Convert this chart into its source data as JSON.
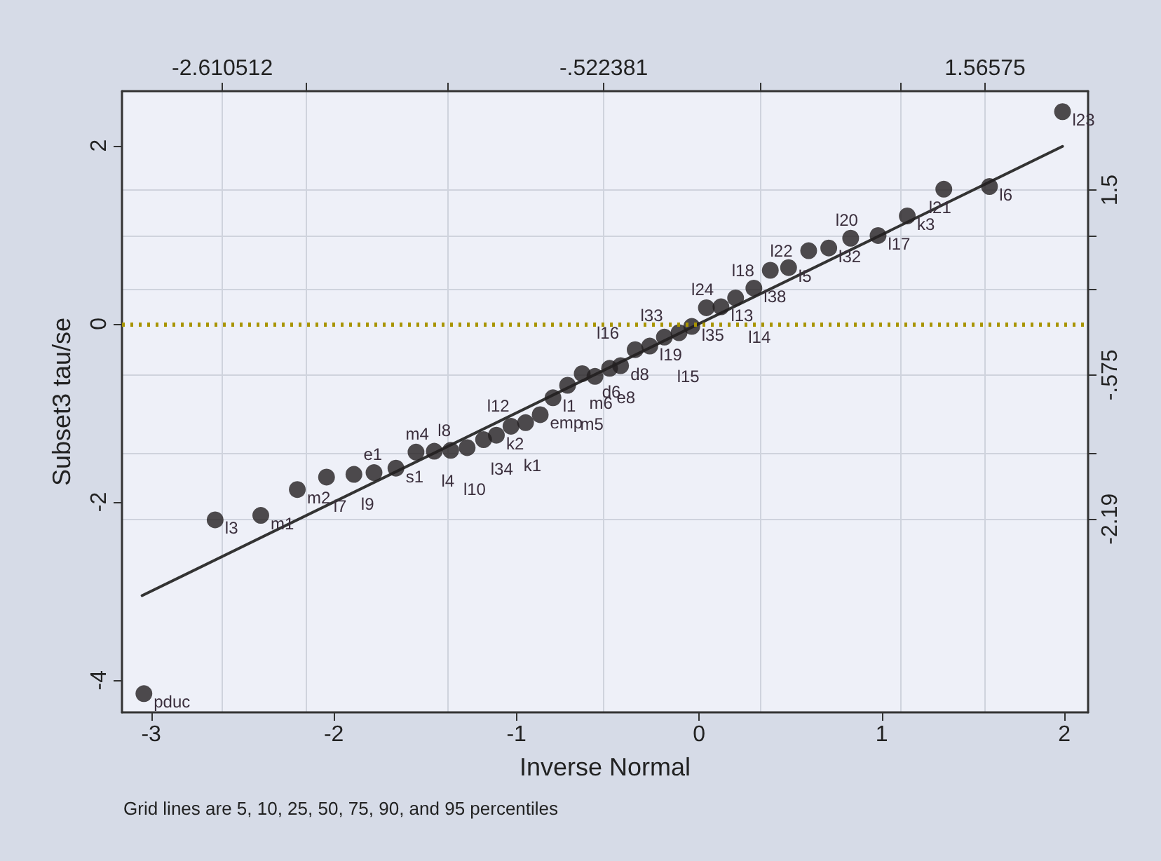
{
  "chart_data": {
    "type": "scatter",
    "xlabel": "Inverse Normal",
    "ylabel": "Subset3 tau/se",
    "xlim": [
      -3.16,
      2.13
    ],
    "ylim": [
      -4.36,
      2.61
    ],
    "xticks": [
      -3,
      -2,
      -1,
      0,
      1,
      2
    ],
    "yticks": [
      -4,
      -2,
      0,
      2
    ],
    "x2lim": [
      -3.16,
      2.13
    ],
    "x2ticks": [
      {
        "value": -2.610512,
        "label": "-2.610512"
      },
      {
        "value": -2.149,
        "label": null
      },
      {
        "value": -1.379,
        "label": null
      },
      {
        "value": -0.522381,
        "label": "-.522381"
      },
      {
        "value": 0.334,
        "label": null
      },
      {
        "value": 1.104,
        "label": null
      },
      {
        "value": 1.56575,
        "label": "1.56575"
      }
    ],
    "y2lim": [
      -4.36,
      2.61
    ],
    "y2ticks": [
      {
        "value": 1.5,
        "label": "1.5"
      },
      {
        "value": 0.98,
        "label": null
      },
      {
        "value": 0.38,
        "label": null
      },
      {
        "value": -0.575,
        "label": "-.575"
      },
      {
        "value": -1.45,
        "label": null
      },
      {
        "value": -2.19,
        "label": "-2.19"
      }
    ],
    "grid": true,
    "marker": "circle",
    "series": [
      {
        "color": "#231f20",
        "x": [
          -3.04,
          -2.65,
          -2.4,
          -2.2,
          -2.04,
          -1.89,
          -1.78,
          -1.66,
          -1.55,
          -1.45,
          -1.36,
          -1.27,
          -1.18,
          -1.11,
          -1.03,
          -0.95,
          -0.87,
          -0.8,
          -0.72,
          -0.64,
          -0.57,
          -0.49,
          -0.43,
          -0.35,
          -0.27,
          -0.19,
          -0.11,
          -0.04,
          0.04,
          0.12,
          0.2,
          0.3,
          0.39,
          0.49,
          0.6,
          0.71,
          0.83,
          0.98,
          1.14,
          1.34,
          1.59,
          1.99
        ],
        "values": [
          -4.15,
          -2.2,
          -2.15,
          -1.86,
          -1.72,
          -1.69,
          -1.67,
          -1.62,
          -1.44,
          -1.43,
          -1.42,
          -1.39,
          -1.3,
          -1.25,
          -1.15,
          -1.11,
          -1.02,
          -0.83,
          -0.69,
          -0.56,
          -0.59,
          -0.5,
          -0.47,
          -0.29,
          -0.25,
          -0.15,
          -0.1,
          -0.03,
          0.18,
          0.19,
          0.29,
          0.4,
          0.6,
          0.63,
          0.82,
          0.85,
          0.96,
          0.99,
          1.21,
          1.51,
          1.54,
          2.38
        ]
      },
      {
        "type": "line",
        "color": "#333333",
        "marker": "none",
        "line_style": "solid",
        "x": [
          -3.05,
          1.99
        ],
        "values": [
          -3.05,
          1.99
        ]
      }
    ],
    "ref_lines": [
      {
        "axis": "y",
        "value": 0,
        "color": "#a89400",
        "line_style": "dotted"
      }
    ],
    "annotations": [
      {
        "text": "pduc",
        "x": -3.04,
        "y": -4.15
      },
      {
        "text": "l3",
        "x": -2.65,
        "y": -2.2
      },
      {
        "text": "m1",
        "x": -2.4,
        "y": -2.15
      },
      {
        "text": "m2",
        "x": -2.2,
        "y": -1.86
      },
      {
        "text": "l7",
        "x": -2.04,
        "y": -1.72
      },
      {
        "text": "l9",
        "x": -1.89,
        "y": -1.69
      },
      {
        "text": "e1",
        "x": -1.78,
        "y": -1.67
      },
      {
        "text": "s1",
        "x": -1.66,
        "y": -1.62
      },
      {
        "text": "m4",
        "x": -1.55,
        "y": -1.44
      },
      {
        "text": "l4",
        "x": -1.45,
        "y": -1.43
      },
      {
        "text": "l10",
        "x": -1.36,
        "y": -1.42
      },
      {
        "text": "l8",
        "x": -1.27,
        "y": -1.39
      },
      {
        "text": "l34",
        "x": -1.18,
        "y": -1.3
      },
      {
        "text": "k2",
        "x": -1.11,
        "y": -1.25
      },
      {
        "text": "k1",
        "x": -1.03,
        "y": -1.15
      },
      {
        "text": "l12",
        "x": -0.95,
        "y": -1.11
      },
      {
        "text": "emp",
        "x": -0.87,
        "y": -1.02
      },
      {
        "text": "l1",
        "x": -0.8,
        "y": -0.83
      },
      {
        "text": "m5",
        "x": -0.72,
        "y": -0.69
      },
      {
        "text": "m6",
        "x": -0.64,
        "y": -0.56
      },
      {
        "text": "d6",
        "x": -0.57,
        "y": -0.59
      },
      {
        "text": "e8",
        "x": -0.49,
        "y": -0.5
      },
      {
        "text": "d8",
        "x": -0.43,
        "y": -0.47
      },
      {
        "text": "l16",
        "x": -0.35,
        "y": -0.29
      },
      {
        "text": "l19",
        "x": -0.27,
        "y": -0.25
      },
      {
        "text": "l15",
        "x": -0.19,
        "y": -0.15
      },
      {
        "text": "l33",
        "x": -0.11,
        "y": -0.1
      },
      {
        "text": "l35",
        "x": -0.04,
        "y": -0.03
      },
      {
        "text": "l24",
        "x": 0.04,
        "y": 0.18
      },
      {
        "text": "l13",
        "x": 0.12,
        "y": 0.19
      },
      {
        "text": "l14",
        "x": 0.2,
        "y": 0.29
      },
      {
        "text": "l38",
        "x": 0.3,
        "y": 0.4
      },
      {
        "text": "l18",
        "x": 0.39,
        "y": 0.6
      },
      {
        "text": "l5",
        "x": 0.49,
        "y": 0.63
      },
      {
        "text": "l22",
        "x": 0.6,
        "y": 0.82
      },
      {
        "text": "l32",
        "x": 0.71,
        "y": 0.85
      },
      {
        "text": "l20",
        "x": 0.83,
        "y": 0.96
      },
      {
        "text": "l17",
        "x": 0.98,
        "y": 0.99
      },
      {
        "text": "k3",
        "x": 1.14,
        "y": 1.21
      },
      {
        "text": "l21",
        "x": 1.34,
        "y": 1.51
      },
      {
        "text": "l6",
        "x": 1.59,
        "y": 1.54
      },
      {
        "text": "l23",
        "x": 1.99,
        "y": 2.38
      },
      "Grid lines are 5, 10, 25, 50, 75, 90, and 95 percentiles"
    ]
  }
}
